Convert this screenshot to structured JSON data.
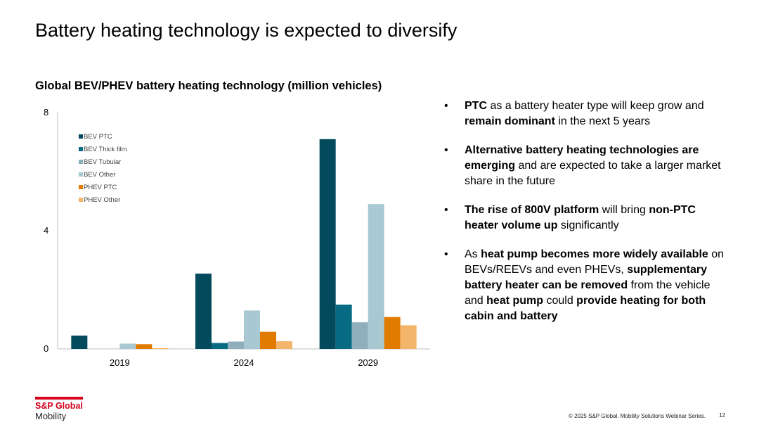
{
  "slide": {
    "title": "Battery heating technology is expected to diversify",
    "footer": "© 2025 S&P Global. Mobility Solutions Webinar Series.",
    "page": "12"
  },
  "brand": {
    "name": "S&P Global",
    "sub": "Mobility",
    "color": "#d6001c"
  },
  "chart_data": {
    "type": "bar",
    "title": "Global BEV/PHEV battery heating technology (million vehicles)",
    "xlabel": "",
    "ylabel": "",
    "categories": [
      "2019",
      "2024",
      "2029"
    ],
    "ylim": [
      0,
      8
    ],
    "yticks": [
      0,
      4,
      8
    ],
    "grid": false,
    "legend_position": "top-left",
    "series": [
      {
        "name": "BEV PTC",
        "color": "#034a5c",
        "values": [
          0.45,
          2.55,
          7.1
        ]
      },
      {
        "name": "BEV Thick film",
        "color": "#086b84",
        "values": [
          0.0,
          0.2,
          1.5
        ]
      },
      {
        "name": "BEV Tubular",
        "color": "#8fafbd",
        "values": [
          0.0,
          0.25,
          0.9
        ]
      },
      {
        "name": "BEV Other",
        "color": "#a8c8d2",
        "values": [
          0.18,
          1.3,
          4.9
        ]
      },
      {
        "name": "PHEV PTC",
        "color": "#e07b00",
        "values": [
          0.16,
          0.58,
          1.08
        ]
      },
      {
        "name": "PHEV Other",
        "color": "#f3b56a",
        "values": [
          0.03,
          0.26,
          0.8
        ]
      }
    ]
  },
  "bullets": [
    [
      {
        "t": "PTC",
        "b": true
      },
      {
        "t": " as a battery heater type will keep grow and ",
        "b": false
      },
      {
        "t": "remain dominant",
        "b": true
      },
      {
        "t": " in the next 5 years",
        "b": false
      }
    ],
    [
      {
        "t": "Alternative battery heating technologies are emerging",
        "b": true
      },
      {
        "t": " and are expected to take a larger market share in the future",
        "b": false
      }
    ],
    [
      {
        "t": "The rise of 800V platform",
        "b": true
      },
      {
        "t": " will bring ",
        "b": false
      },
      {
        "t": "non-PTC heater volume up",
        "b": true
      },
      {
        "t": " significantly",
        "b": false
      }
    ],
    [
      {
        "t": "As ",
        "b": false
      },
      {
        "t": "heat pump becomes more widely available",
        "b": true
      },
      {
        "t": " on BEVs/REEVs and even PHEVs, ",
        "b": false
      },
      {
        "t": "supplementary battery heater can be removed",
        "b": true
      },
      {
        "t": " from the vehicle and ",
        "b": false
      },
      {
        "t": "heat pump",
        "b": true
      },
      {
        "t": " could ",
        "b": false
      },
      {
        "t": "provide heating for both cabin and battery",
        "b": true
      }
    ]
  ]
}
